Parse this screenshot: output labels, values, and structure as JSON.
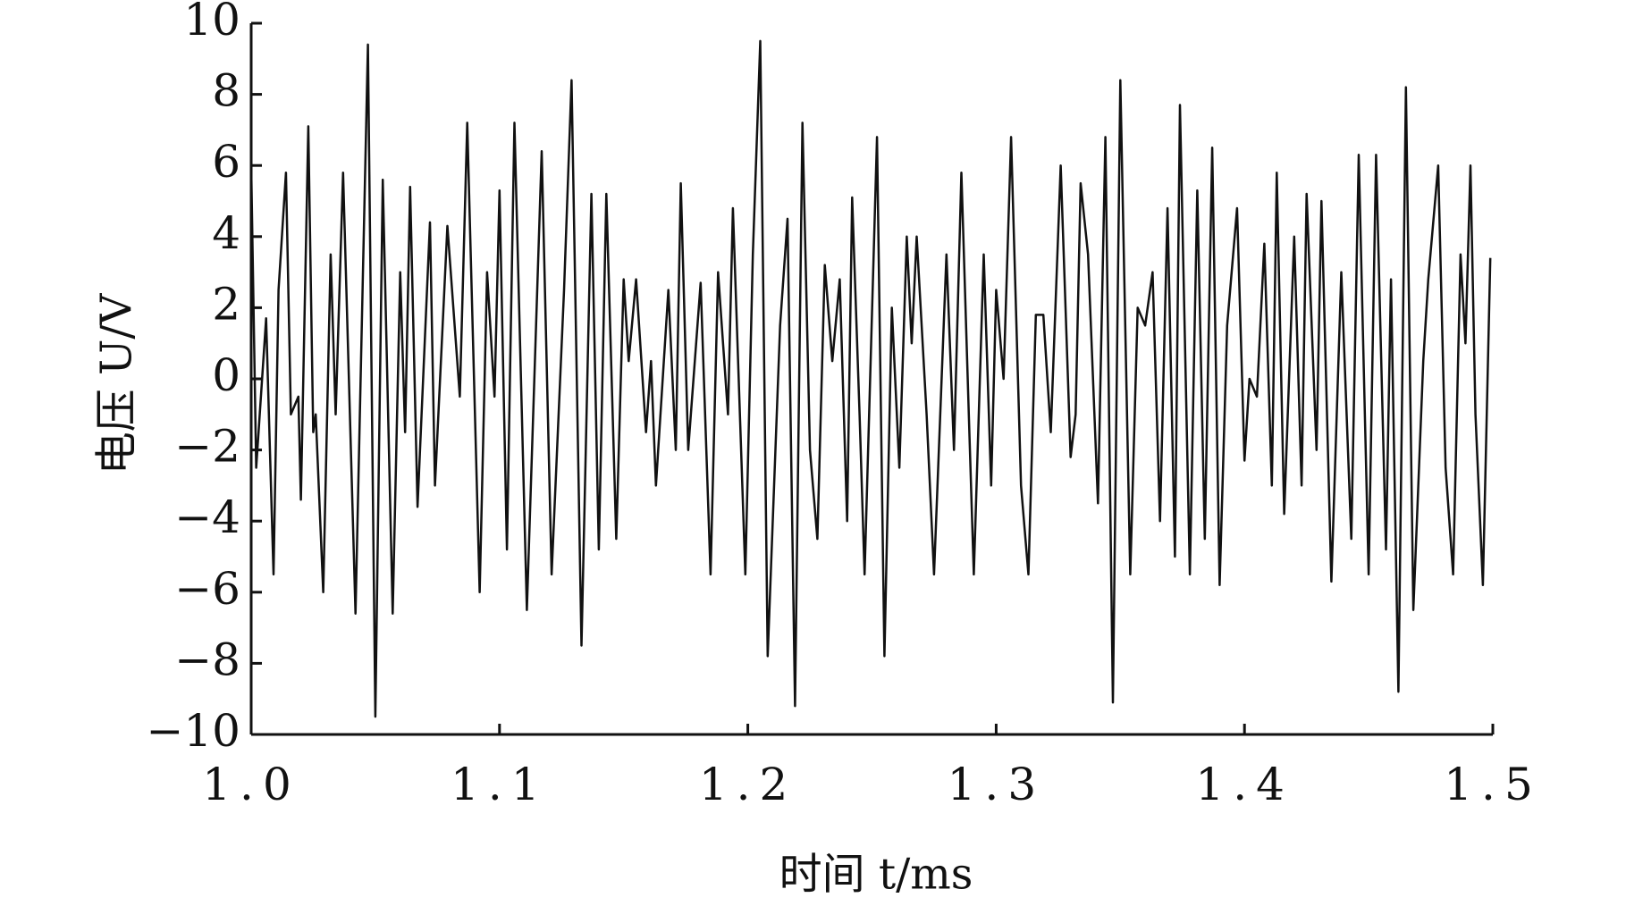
{
  "chart_data": {
    "type": "line",
    "xlabel": "时间 t/ms",
    "ylabel": "电压 U/V",
    "xlim": [
      1.0,
      1.5
    ],
    "ylim": [
      -10,
      10
    ],
    "xticks": [
      {
        "value": 1,
        "label": "1.0"
      },
      1.1,
      1.2,
      1.3,
      1.4,
      1.5
    ],
    "yticks": [
      {
        "value": -10,
        "label": "−10"
      },
      {
        "value": -8,
        "label": "−8"
      },
      {
        "value": -6,
        "label": "−6"
      },
      {
        "value": -4,
        "label": "−4"
      },
      {
        "value": -2,
        "label": "−2"
      },
      0,
      2,
      4,
      6,
      8,
      10
    ],
    "series": [
      {
        "color": "#111111",
        "x": [
          1.0,
          1.002,
          1.006,
          1.009,
          1.011,
          1.014,
          1.016,
          1.019,
          1.02,
          1.023,
          1.025,
          1.026,
          1.029,
          1.032,
          1.034,
          1.037,
          1.042,
          1.047,
          1.05,
          1.053,
          1.057,
          1.06,
          1.062,
          1.064,
          1.067,
          1.072,
          1.074,
          1.079,
          1.084,
          1.087,
          1.092,
          1.095,
          1.098,
          1.1,
          1.103,
          1.106,
          1.111,
          1.117,
          1.121,
          1.126,
          1.129,
          1.133,
          1.137,
          1.14,
          1.143,
          1.147,
          1.15,
          1.152,
          1.155,
          1.159,
          1.161,
          1.163,
          1.168,
          1.171,
          1.173,
          1.176,
          1.181,
          1.185,
          1.188,
          1.192,
          1.194,
          1.199,
          1.202,
          1.205,
          1.208,
          1.213,
          1.216,
          1.219,
          1.222,
          1.225,
          1.228,
          1.231,
          1.234,
          1.237,
          1.24,
          1.242,
          1.245,
          1.247,
          1.252,
          1.255,
          1.258,
          1.261,
          1.264,
          1.266,
          1.268,
          1.272,
          1.275,
          1.28,
          1.283,
          1.286,
          1.289,
          1.291,
          1.295,
          1.298,
          1.3,
          1.303,
          1.306,
          1.31,
          1.313,
          1.316,
          1.319,
          1.322,
          1.326,
          1.33,
          1.332,
          1.334,
          1.337,
          1.341,
          1.344,
          1.347,
          1.35,
          1.354,
          1.357,
          1.36,
          1.363,
          1.366,
          1.369,
          1.372,
          1.374,
          1.378,
          1.381,
          1.384,
          1.387,
          1.39,
          1.393,
          1.397,
          1.4,
          1.402,
          1.405,
          1.408,
          1.411,
          1.413,
          1.416,
          1.42,
          1.423,
          1.425,
          1.429,
          1.431,
          1.435,
          1.439,
          1.443,
          1.446,
          1.45,
          1.453,
          1.457,
          1.459,
          1.462,
          1.465,
          1.468,
          1.472,
          1.474,
          1.478,
          1.481,
          1.484,
          1.487,
          1.489,
          1.491,
          1.493,
          1.496,
          1.499
        ],
        "values": [
          6,
          -2.5,
          1.7,
          -5.5,
          2.5,
          5.8,
          -1,
          -0.5,
          -3.4,
          7.1,
          -1.5,
          -1,
          -6,
          3.5,
          -1,
          5.8,
          -6.6,
          9.4,
          -9.5,
          5.6,
          -6.6,
          3,
          -1.5,
          5.4,
          -3.6,
          4.4,
          -3,
          4.3,
          -0.5,
          7.2,
          -6,
          3,
          -0.5,
          5.3,
          -4.8,
          7.2,
          -6.5,
          6.4,
          -5.5,
          2.5,
          8.4,
          -7.5,
          5.2,
          -4.8,
          5.2,
          -4.5,
          2.8,
          0.5,
          2.8,
          -1.5,
          0.5,
          -3,
          2.5,
          -2,
          5.5,
          -2,
          2.7,
          -5.5,
          3,
          -1,
          4.8,
          -5.5,
          3.5,
          9.5,
          -7.8,
          1.5,
          4.5,
          -9.2,
          7.2,
          -2,
          -4.5,
          3.2,
          0.5,
          2.8,
          -4,
          5.1,
          -1,
          -5.5,
          6.8,
          -7.8,
          2,
          -2.5,
          4,
          1,
          4,
          -1,
          -5.5,
          3.5,
          -2,
          5.8,
          -1,
          -5.5,
          3.5,
          -3,
          2.5,
          0,
          6.8,
          -3,
          -5.5,
          1.8,
          1.8,
          -1.5,
          6,
          -2.2,
          -1,
          5.5,
          3.5,
          -3.5,
          6.8,
          -9.1,
          8.4,
          -5.5,
          2,
          1.5,
          3,
          -4,
          4.8,
          -5,
          7.7,
          -5.5,
          5.3,
          -4.5,
          6.5,
          -5.8,
          1.5,
          4.8,
          -2.3,
          0,
          -0.5,
          3.8,
          -3,
          5.8,
          -3.8,
          4,
          -3,
          5.2,
          -2,
          5,
          -5.7,
          3,
          -4.5,
          6.3,
          -5.5,
          6.3,
          -4.8,
          2.8,
          -8.8,
          8.2,
          -6.5,
          0.5,
          2.8,
          6,
          -2.5,
          -5.5,
          3.5,
          1,
          6,
          -1,
          -5.8,
          3.4
        ]
      }
    ]
  }
}
